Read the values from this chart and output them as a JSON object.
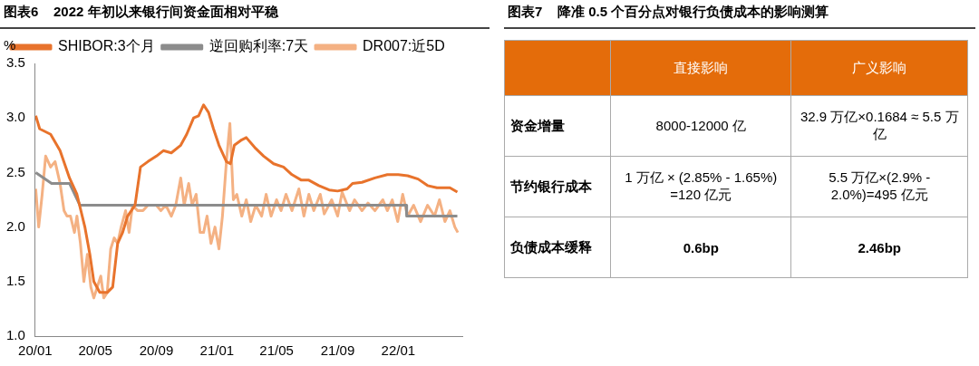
{
  "chart_data": [
    {
      "type": "line",
      "title": "图表6    2022 年初以来银行间资金面相对平稳",
      "ylabel": "%",
      "legend": "top",
      "grid": false,
      "marker": "none",
      "line_style": "solid",
      "xlim": [
        "2020-01-01",
        "2022-05-10"
      ],
      "xticks": [
        {
          "value": "2020-01-01",
          "label": "20/01"
        },
        {
          "value": "2020-05-01",
          "label": "20/05"
        },
        {
          "value": "2020-09-01",
          "label": "20/09"
        },
        {
          "value": "2021-01-01",
          "label": "21/01"
        },
        {
          "value": "2021-05-01",
          "label": "21/05"
        },
        {
          "value": "2021-09-01",
          "label": "21/09"
        },
        {
          "value": "2022-01-01",
          "label": "22/01"
        }
      ],
      "ylim": [
        1.0,
        3.5
      ],
      "yticks": [
        {
          "value": 1,
          "label": "1.0"
        },
        {
          "value": 1.5,
          "label": "1.5"
        },
        {
          "value": 2,
          "label": "2.0"
        },
        {
          "value": 2.5,
          "label": "2.5"
        },
        {
          "value": 3,
          "label": "3.0"
        },
        {
          "value": 3.5,
          "label": "3.5"
        }
      ],
      "series": [
        {
          "name": "SHIBOR:3个月",
          "color": "#e8732c",
          "x": [
            "2020-01-02",
            "2020-01-10",
            "2020-02-01",
            "2020-02-20",
            "2020-03-10",
            "2020-03-25",
            "2020-04-10",
            "2020-04-20",
            "2020-04-28",
            "2020-05-10",
            "2020-05-25",
            "2020-06-05",
            "2020-06-15",
            "2020-06-25",
            "2020-07-05",
            "2020-07-20",
            "2020-07-31",
            "2020-08-15",
            "2020-09-01",
            "2020-09-15",
            "2020-10-01",
            "2020-10-20",
            "2020-11-01",
            "2020-11-15",
            "2020-11-25",
            "2020-12-05",
            "2020-12-15",
            "2020-12-25",
            "2021-01-05",
            "2021-01-20",
            "2021-01-28",
            "2021-02-05",
            "2021-02-20",
            "2021-03-01",
            "2021-03-20",
            "2021-04-05",
            "2021-04-25",
            "2021-05-15",
            "2021-06-01",
            "2021-06-20",
            "2021-07-05",
            "2021-07-25",
            "2021-08-15",
            "2021-09-01",
            "2021-09-20",
            "2021-10-01",
            "2021-10-20",
            "2021-11-15",
            "2021-12-10",
            "2022-01-01",
            "2022-01-20",
            "2022-02-10",
            "2022-03-01",
            "2022-03-20",
            "2022-04-15",
            "2022-04-30"
          ],
          "values": [
            3.02,
            2.9,
            2.85,
            2.7,
            2.45,
            2.3,
            2.0,
            1.75,
            1.5,
            1.4,
            1.4,
            1.45,
            1.85,
            1.95,
            2.1,
            2.2,
            2.55,
            2.6,
            2.65,
            2.7,
            2.68,
            2.75,
            2.85,
            3.0,
            3.02,
            3.12,
            3.05,
            2.9,
            2.75,
            2.6,
            2.58,
            2.75,
            2.8,
            2.82,
            2.72,
            2.65,
            2.58,
            2.55,
            2.48,
            2.43,
            2.43,
            2.38,
            2.34,
            2.33,
            2.35,
            2.4,
            2.41,
            2.45,
            2.48,
            2.48,
            2.47,
            2.44,
            2.38,
            2.36,
            2.36,
            2.32
          ]
        },
        {
          "name": "逆回购利率:7天",
          "color": "#8c8c8c",
          "x": [
            "2020-01-02",
            "2020-02-03",
            "2020-03-10",
            "2020-03-31",
            "2022-01-17",
            "2022-01-18",
            "2022-04-30"
          ],
          "values": [
            2.5,
            2.4,
            2.4,
            2.2,
            2.2,
            2.1,
            2.1
          ]
        },
        {
          "name": "DR007:近5D",
          "color": "#f4b183",
          "x": [
            "2020-01-02",
            "2020-01-08",
            "2020-01-15",
            "2020-01-22",
            "2020-02-01",
            "2020-02-10",
            "2020-02-20",
            "2020-02-28",
            "2020-03-05",
            "2020-03-12",
            "2020-03-20",
            "2020-03-25",
            "2020-04-01",
            "2020-04-08",
            "2020-04-15",
            "2020-04-22",
            "2020-04-28",
            "2020-05-05",
            "2020-05-12",
            "2020-05-18",
            "2020-05-25",
            "2020-06-01",
            "2020-06-08",
            "2020-06-15",
            "2020-06-22",
            "2020-07-01",
            "2020-07-08",
            "2020-07-15",
            "2020-07-25",
            "2020-08-05",
            "2020-08-15",
            "2020-09-01",
            "2020-09-10",
            "2020-09-20",
            "2020-10-01",
            "2020-10-10",
            "2020-10-20",
            "2020-10-27",
            "2020-11-05",
            "2020-11-12",
            "2020-11-20",
            "2020-11-28",
            "2020-12-05",
            "2020-12-12",
            "2020-12-20",
            "2020-12-28",
            "2021-01-05",
            "2021-01-12",
            "2021-01-20",
            "2021-01-27",
            "2021-02-03",
            "2021-02-10",
            "2021-02-20",
            "2021-03-01",
            "2021-03-10",
            "2021-03-20",
            "2021-04-01",
            "2021-04-10",
            "2021-04-20",
            "2021-05-01",
            "2021-05-10",
            "2021-05-20",
            "2021-06-01",
            "2021-06-15",
            "2021-06-25",
            "2021-07-05",
            "2021-07-15",
            "2021-07-28",
            "2021-08-05",
            "2021-08-20",
            "2021-09-01",
            "2021-09-10",
            "2021-09-25",
            "2021-10-05",
            "2021-10-20",
            "2021-11-01",
            "2021-11-15",
            "2021-12-01",
            "2021-12-10",
            "2021-12-20",
            "2021-12-31",
            "2022-01-10",
            "2022-01-20",
            "2022-02-01",
            "2022-02-15",
            "2022-03-01",
            "2022-03-15",
            "2022-03-25",
            "2022-04-05",
            "2022-04-15",
            "2022-04-25",
            "2022-05-01"
          ],
          "values": [
            2.35,
            2.0,
            2.3,
            2.65,
            2.55,
            2.6,
            2.4,
            2.15,
            2.1,
            2.1,
            1.95,
            2.1,
            1.85,
            1.5,
            1.75,
            1.45,
            1.35,
            1.45,
            1.55,
            1.35,
            1.4,
            1.8,
            1.9,
            1.85,
            2.0,
            2.15,
            1.95,
            2.2,
            2.15,
            2.15,
            2.2,
            2.2,
            2.15,
            2.2,
            2.1,
            2.2,
            2.45,
            2.2,
            2.4,
            2.2,
            2.3,
            1.95,
            1.95,
            2.1,
            1.85,
            2.0,
            1.8,
            2.1,
            2.6,
            2.95,
            2.25,
            2.3,
            2.1,
            2.25,
            2.05,
            2.2,
            2.1,
            2.3,
            2.1,
            2.25,
            2.15,
            2.3,
            2.15,
            2.35,
            2.1,
            2.3,
            2.15,
            2.3,
            2.12,
            2.25,
            2.1,
            2.32,
            2.15,
            2.25,
            2.15,
            2.22,
            2.15,
            2.25,
            2.15,
            2.25,
            2.05,
            2.3,
            2.1,
            2.2,
            2.05,
            2.2,
            2.1,
            2.25,
            2.05,
            2.15,
            2.0,
            1.95
          ]
        }
      ]
    },
    {
      "type": "other",
      "title": "图表7    降准 0.5 个百分点对银行负债成本的影响测算",
      "categories": [
        null,
        "直接影响",
        "广义影响"
      ],
      "y_categories": [
        "资金增量",
        "节约银行成本",
        "负债成本缓释"
      ],
      "cell_labels": [
        [
          "8000-12000 亿",
          "32.9 万亿×0.1684 ≈ 5.5 万亿"
        ],
        [
          "1 万亿 × (2.85% - 1.65%) =120 亿元",
          "5.5 万亿×(2.9% - 2.0%)=495 亿元"
        ],
        [
          "0.6bp",
          "2.46bp"
        ]
      ]
    }
  ]
}
